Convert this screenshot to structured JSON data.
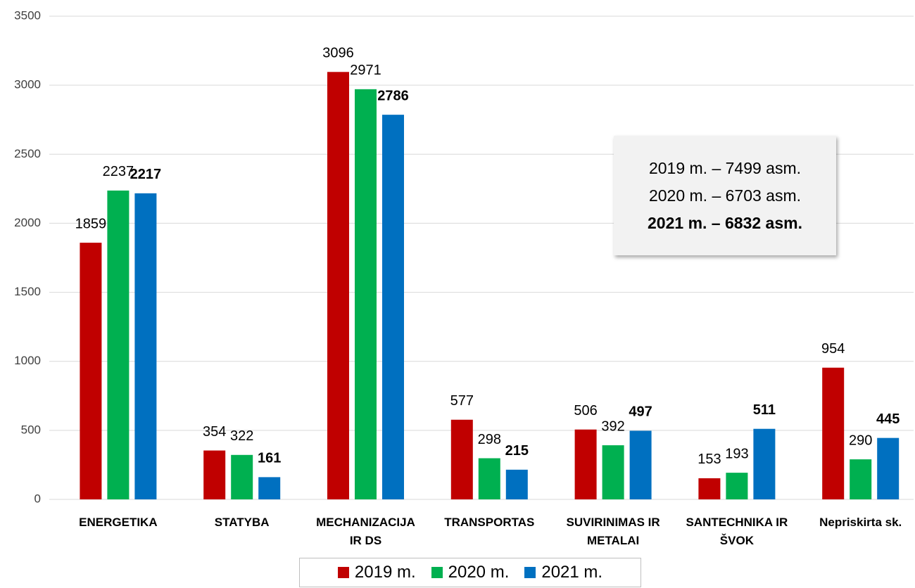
{
  "chart_data": {
    "type": "bar",
    "categories": [
      "ENERGETIKA",
      "STATYBA",
      "MECHANIZACIJA\nIR DS",
      "TRANSPORTAS",
      "SUVIRINIMAS IR\nMETALAI",
      "SANTECHNIKA IR\nŠVOK",
      "Nepriskirta sk."
    ],
    "series": [
      {
        "name": "2019 m.",
        "color": "#c00000",
        "bold": false,
        "values": [
          1859,
          354,
          3096,
          577,
          506,
          153,
          954
        ]
      },
      {
        "name": "2020 m.",
        "color": "#00b050",
        "bold": false,
        "values": [
          2237,
          322,
          2971,
          298,
          392,
          193,
          290
        ]
      },
      {
        "name": "2021 m.",
        "color": "#0070c0",
        "bold": true,
        "values": [
          2217,
          161,
          2786,
          215,
          497,
          511,
          445
        ]
      }
    ],
    "ylim": [
      0,
      3500
    ],
    "yticks": [
      0,
      500,
      1000,
      1500,
      2000,
      2500,
      3000,
      3500
    ],
    "grid": true,
    "legend": "bottom",
    "annotations": [
      "2019 m. – 7499 asm.",
      "2020 m. – 6703 asm.",
      "2021 m. – 6832 asm."
    ]
  }
}
